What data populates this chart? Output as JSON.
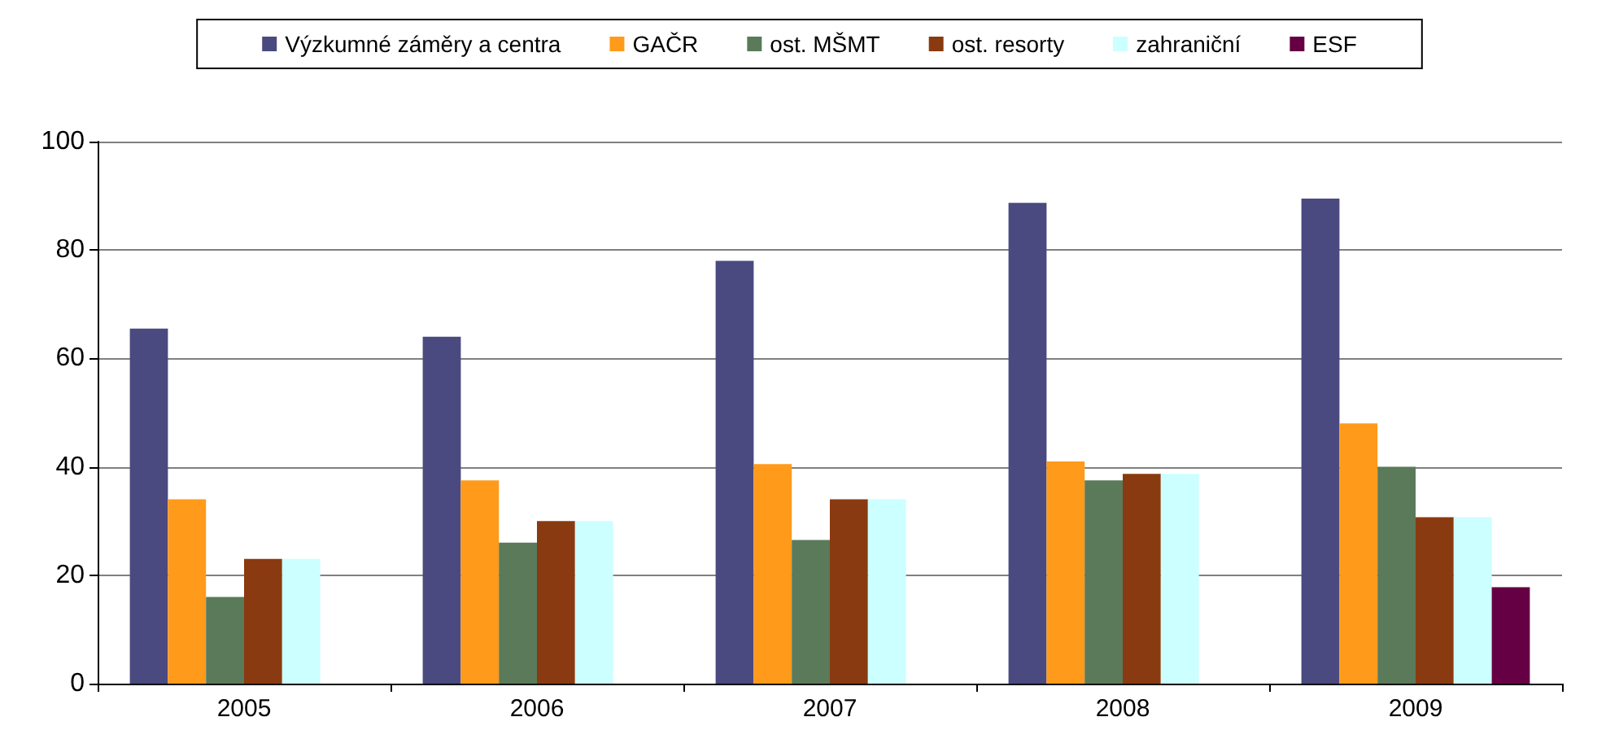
{
  "chart_data": {
    "type": "bar",
    "categories": [
      "2005",
      "2006",
      "2007",
      "2008",
      "2009"
    ],
    "series": [
      {
        "name": "Výzkumné záměry a centra",
        "color": "#4a4a80",
        "values": [
          65.5,
          64,
          78,
          88.7,
          89.5
        ]
      },
      {
        "name": "GAČR",
        "color": "#ff9a1a",
        "values": [
          34,
          37.5,
          40.5,
          41,
          48
        ]
      },
      {
        "name": "ost. MŠMT",
        "color": "#5a7a5a",
        "values": [
          16,
          26,
          26.5,
          37.5,
          40
        ]
      },
      {
        "name": "ost. resorty",
        "color": "#8a3a10",
        "values": [
          23,
          30,
          34,
          38.7,
          30.7
        ]
      },
      {
        "name": "zahraniční",
        "color": "#ccffff",
        "values": [
          23,
          30,
          34,
          38.7,
          30.7
        ]
      },
      {
        "name": "ESF",
        "color": "#660044",
        "values": [
          null,
          null,
          null,
          null,
          17.8
        ]
      }
    ],
    "ylim": [
      0,
      100
    ],
    "yticks": [
      0,
      20,
      40,
      60,
      80,
      100
    ],
    "grid": "y",
    "legend": "top"
  }
}
